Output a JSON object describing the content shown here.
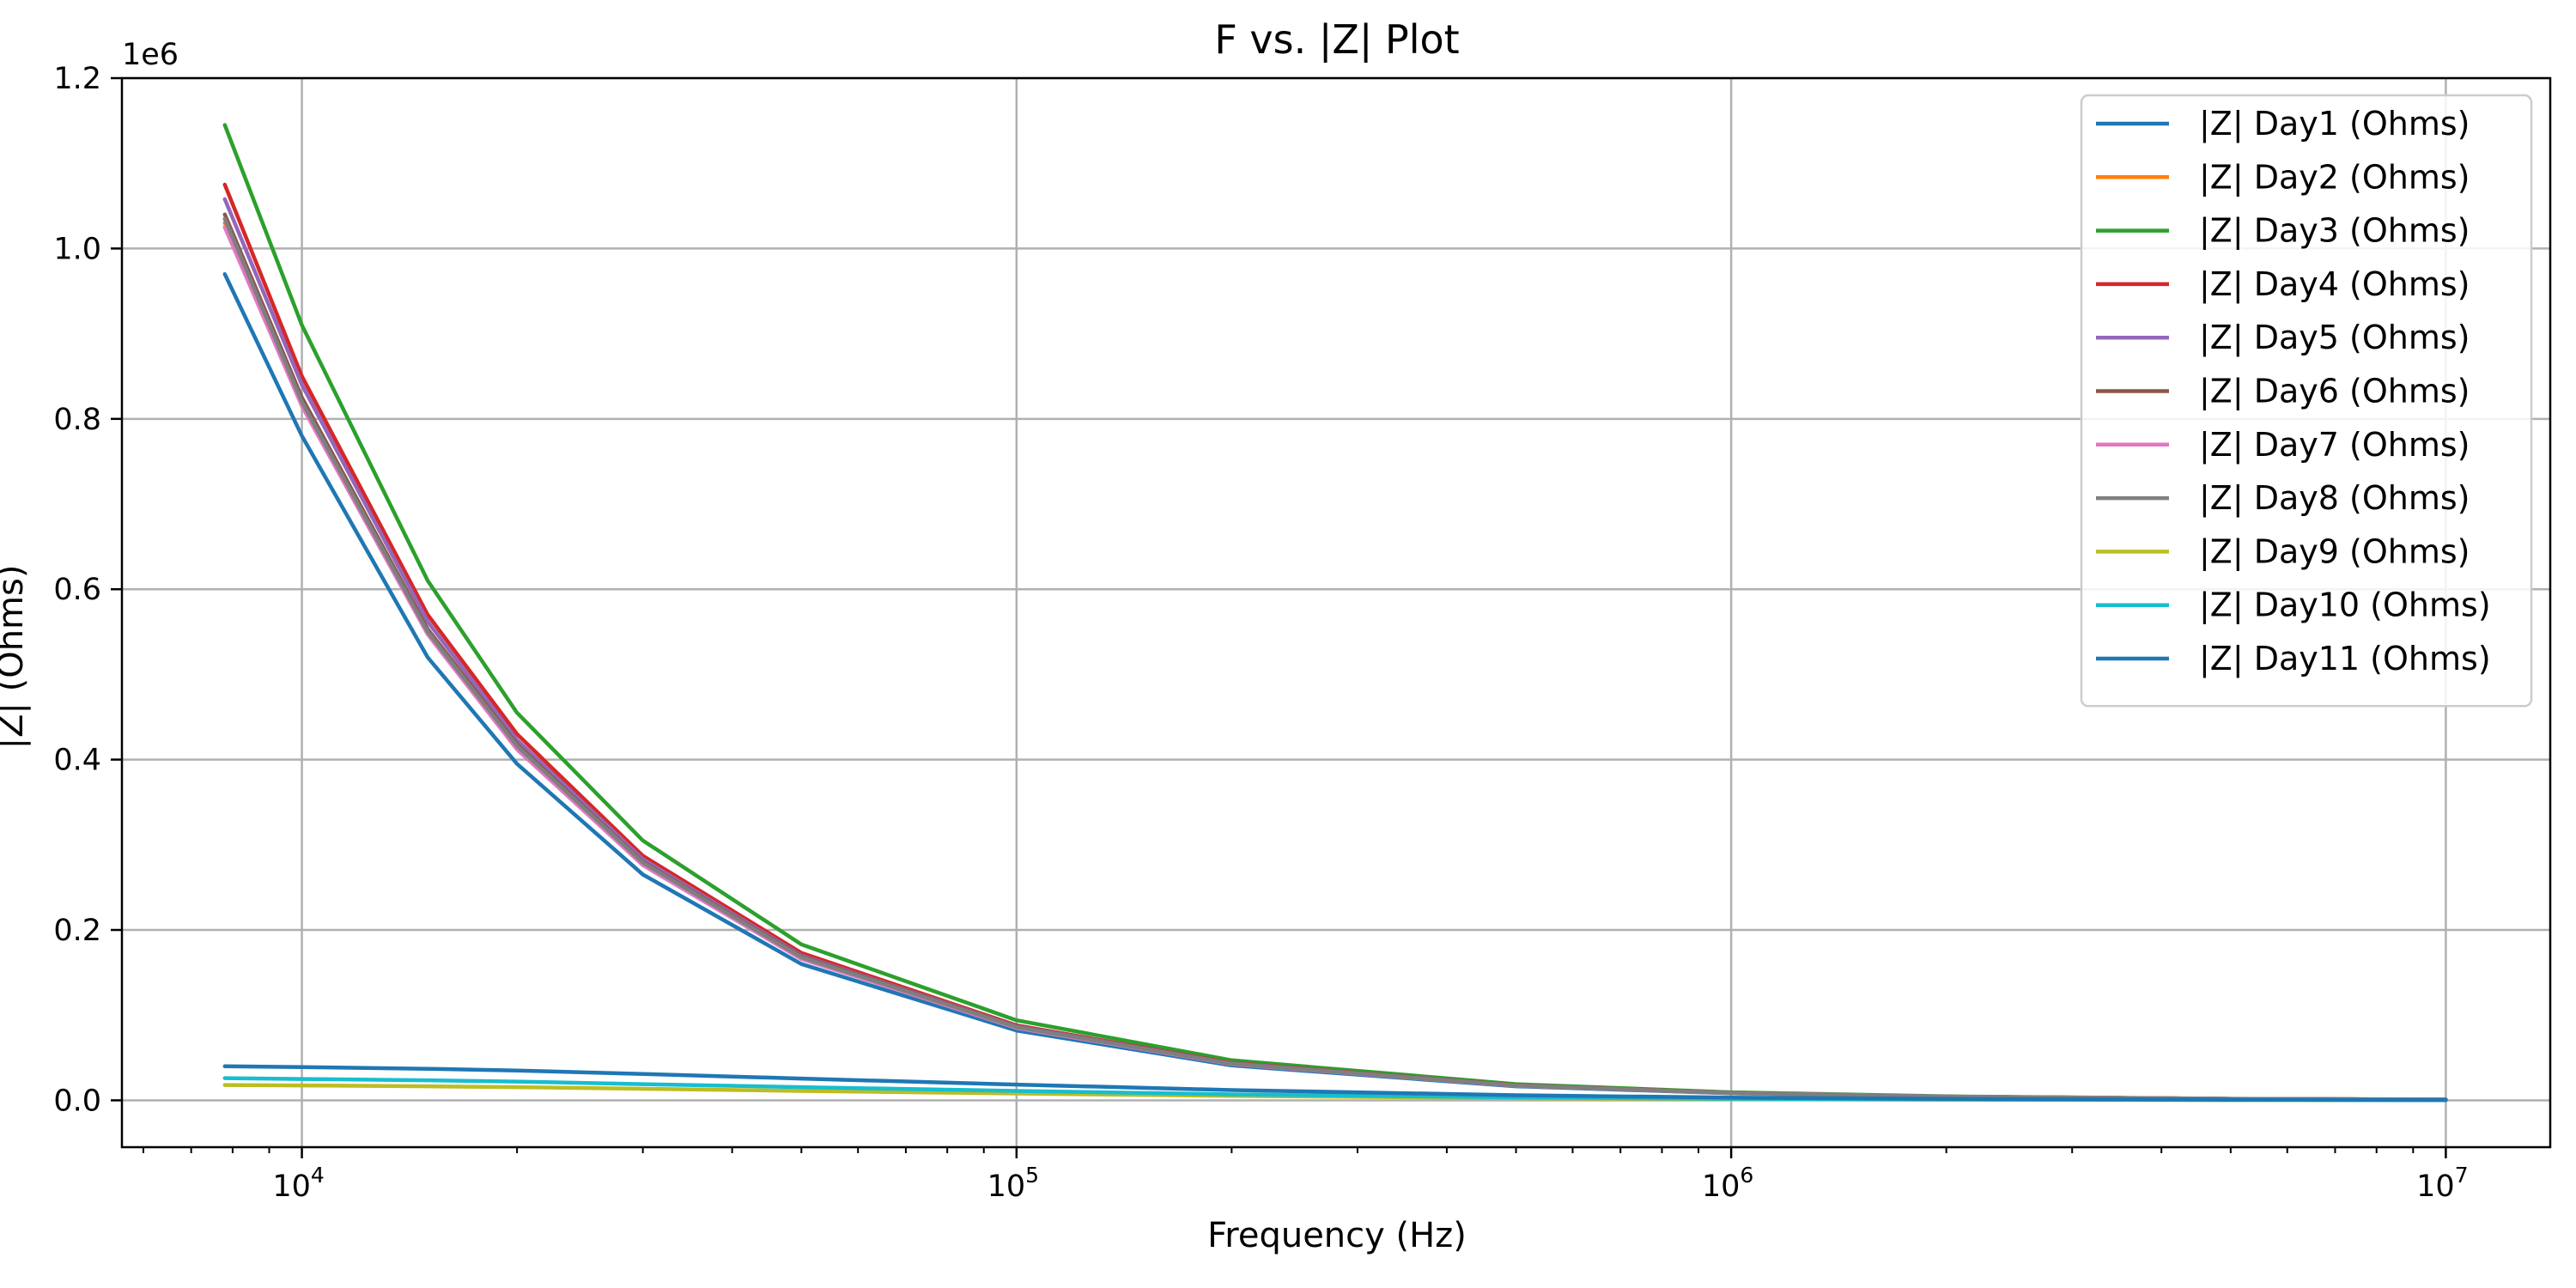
{
  "chart_data": {
    "type": "line",
    "title": "F vs. |Z| Plot",
    "xlabel": "Frequency (Hz)",
    "ylabel": "|Z| (Ohms)",
    "x_scale": "log",
    "xlim": [
      5600,
      14000000
    ],
    "ylim": [
      -55000,
      1200000
    ],
    "y_offset_label": "1e6",
    "x_ticks": [
      10000,
      100000,
      1000000,
      10000000
    ],
    "x_tick_labels": [
      {
        "base": "10",
        "exp": "4"
      },
      {
        "base": "10",
        "exp": "5"
      },
      {
        "base": "10",
        "exp": "6"
      },
      {
        "base": "10",
        "exp": "7"
      }
    ],
    "y_ticks": [
      0,
      200000,
      400000,
      600000,
      800000,
      1000000,
      1200000
    ],
    "y_tick_labels": [
      "0.0",
      "0.2",
      "0.4",
      "0.6",
      "0.8",
      "1.0",
      "1.2"
    ],
    "grid": true,
    "legend_position": "top-right",
    "x": [
      7800,
      10000,
      15000,
      20000,
      30000,
      50000,
      100000,
      200000,
      500000,
      1000000,
      2000000,
      5000000,
      10000000
    ],
    "series": [
      {
        "name": "|Z| Day1 (Ohms)",
        "color": "#1f77b4",
        "values": [
          970000,
          780000,
          520000,
          395000,
          265000,
          160000,
          82000,
          41000,
          16500,
          8200,
          4100,
          1700,
          850
        ]
      },
      {
        "name": "|Z| Day2 (Ohms)",
        "color": "#ff7f0e",
        "values": [
          1030000,
          820000,
          550000,
          415000,
          278000,
          168000,
          86000,
          43000,
          17300,
          8600,
          4300,
          1750,
          880
        ]
      },
      {
        "name": "|Z| Day3 (Ohms)",
        "color": "#2ca02c",
        "values": [
          1145000,
          910000,
          610000,
          455000,
          305000,
          183000,
          94000,
          47000,
          19000,
          9400,
          4700,
          1900,
          950
        ]
      },
      {
        "name": "|Z| Day4 (Ohms)",
        "color": "#d62728",
        "values": [
          1075000,
          850000,
          570000,
          430000,
          287000,
          173000,
          88000,
          44000,
          17700,
          8800,
          4400,
          1800,
          900
        ]
      },
      {
        "name": "|Z| Day5 (Ohms)",
        "color": "#9467bd",
        "values": [
          1058000,
          840000,
          562000,
          423000,
          283000,
          170000,
          87000,
          43500,
          17500,
          8700,
          4350,
          1780,
          890
        ]
      },
      {
        "name": "|Z| Day6 (Ohms)",
        "color": "#8c564b",
        "values": [
          1040000,
          825000,
          553000,
          418000,
          280000,
          169000,
          86500,
          43200,
          17400,
          8650,
          4320,
          1760,
          885
        ]
      },
      {
        "name": "|Z| Day7 (Ohms)",
        "color": "#e377c2",
        "values": [
          1025000,
          815000,
          547000,
          412000,
          276000,
          166000,
          85000,
          42500,
          17100,
          8500,
          4250,
          1740,
          870
        ]
      },
      {
        "name": "|Z| Day8 (Ohms)",
        "color": "#7f7f7f",
        "values": [
          1035000,
          820000,
          550000,
          416000,
          279000,
          168000,
          86000,
          43000,
          17300,
          8600,
          4300,
          1750,
          880
        ]
      },
      {
        "name": "|Z| Day9 (Ohms)",
        "color": "#bcbd22",
        "values": [
          18000,
          17500,
          16500,
          15500,
          13500,
          11000,
          8000,
          5200,
          2600,
          1400,
          750,
          320,
          170
        ]
      },
      {
        "name": "|Z| Day10 (Ohms)",
        "color": "#17becf",
        "values": [
          26000,
          25000,
          23500,
          22000,
          19000,
          15500,
          11000,
          7000,
          3500,
          1900,
          1000,
          420,
          220
        ]
      },
      {
        "name": "|Z| Day11 (Ohms)",
        "color": "#1f77b4",
        "values": [
          40000,
          39000,
          37000,
          35000,
          31000,
          25500,
          18500,
          12000,
          6000,
          3200,
          1700,
          700,
          360
        ]
      }
    ]
  }
}
